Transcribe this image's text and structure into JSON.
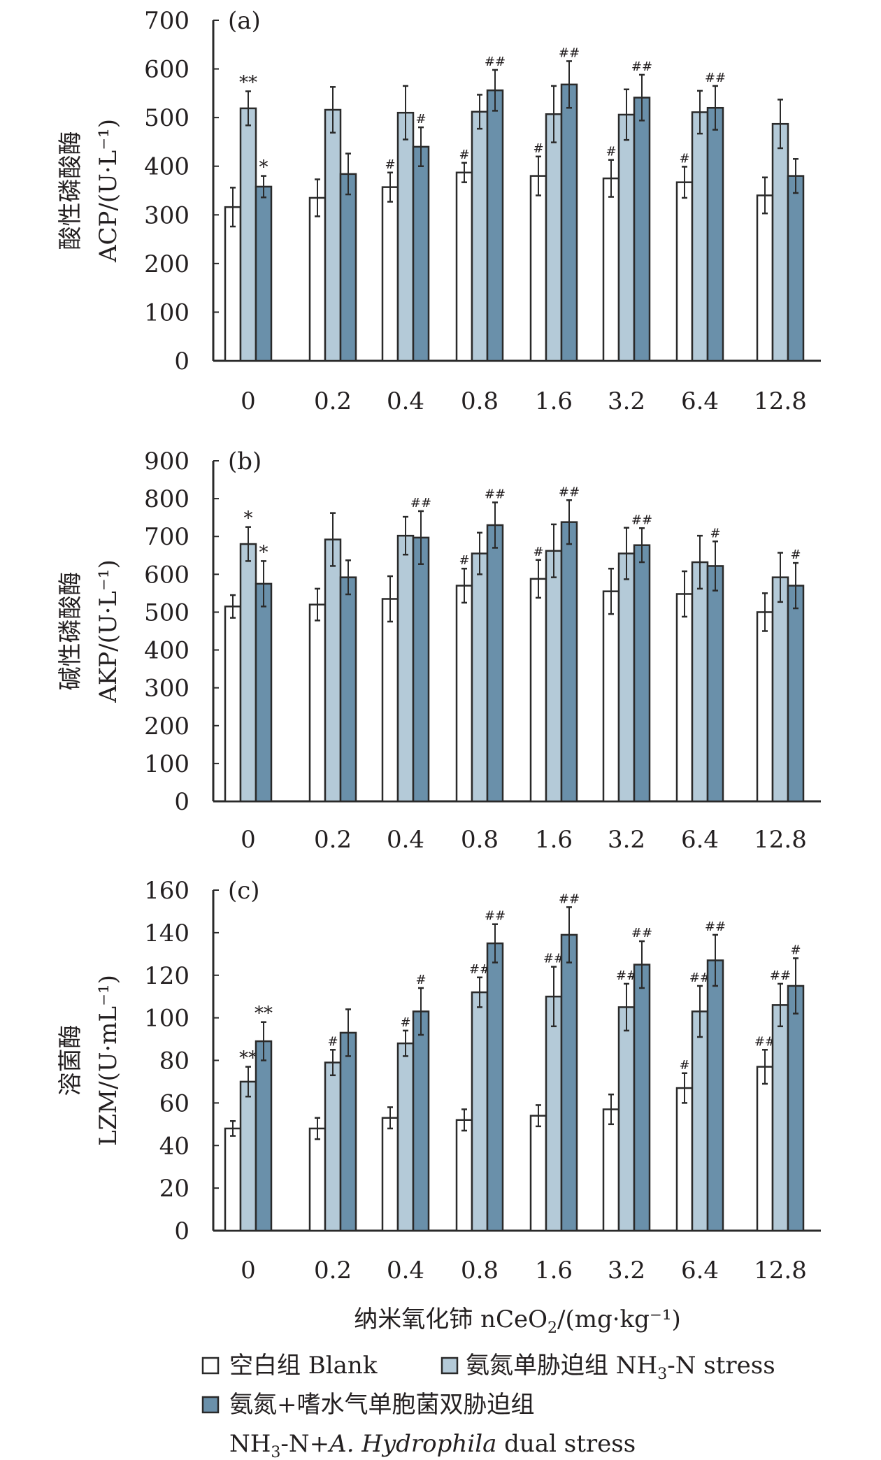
{
  "colors": {
    "blank": "#ffffff",
    "stress": "#b4cad8",
    "dual": "#6a90aa",
    "stroke": "#2a2a2a"
  },
  "chart_data": [
    {
      "type": "bar",
      "panel_label": "(a)",
      "ylabel_cn": "酸性磷酸酶",
      "ylabel_en": "ACP/(U·L⁻¹)",
      "ylim": [
        0,
        700
      ],
      "yticks": [
        "0",
        "100",
        "200",
        "300",
        "400",
        "500",
        "600",
        "700"
      ],
      "categories": [
        "0",
        "0.2",
        "0.4",
        "0.8",
        "1.6",
        "3.2",
        "6.4",
        "12.8"
      ],
      "series": [
        {
          "name": "blank",
          "values": [
            316,
            335,
            357,
            387,
            380,
            375,
            367,
            340
          ],
          "errors": [
            40,
            38,
            30,
            20,
            40,
            38,
            32,
            37
          ],
          "marks": [
            "",
            "",
            "#",
            "#",
            "#",
            "#",
            "#",
            ""
          ]
        },
        {
          "name": "stress",
          "values": [
            519,
            516,
            510,
            512,
            507,
            506,
            511,
            487
          ],
          "errors": [
            35,
            47,
            55,
            35,
            58,
            52,
            44,
            50
          ],
          "marks": [
            "**",
            "",
            "",
            "",
            "",
            "",
            "",
            ""
          ]
        },
        {
          "name": "dual",
          "values": [
            358,
            384,
            440,
            556,
            568,
            541,
            520,
            380
          ],
          "errors": [
            22,
            42,
            40,
            42,
            48,
            47,
            45,
            35
          ],
          "marks": [
            "*",
            "",
            "#",
            "##",
            "##",
            "##",
            "##",
            ""
          ]
        }
      ]
    },
    {
      "type": "bar",
      "panel_label": "(b)",
      "ylabel_cn": "碱性磷酸酶",
      "ylabel_en": "AKP/(U·L⁻¹)",
      "ylim": [
        0,
        900
      ],
      "yticks": [
        "0",
        "100",
        "200",
        "300",
        "400",
        "500",
        "600",
        "700",
        "800",
        "900"
      ],
      "categories": [
        "0",
        "0.2",
        "0.4",
        "0.8",
        "1.6",
        "3.2",
        "6.4",
        "12.8"
      ],
      "series": [
        {
          "name": "blank",
          "values": [
            515,
            520,
            535,
            570,
            588,
            555,
            548,
            500
          ],
          "errors": [
            30,
            42,
            60,
            45,
            50,
            60,
            60,
            50
          ],
          "marks": [
            "",
            "",
            "",
            "#",
            "#",
            "",
            "",
            ""
          ]
        },
        {
          "name": "stress",
          "values": [
            680,
            692,
            702,
            655,
            662,
            655,
            632,
            592
          ],
          "errors": [
            45,
            70,
            50,
            55,
            70,
            68,
            70,
            65
          ],
          "marks": [
            "*",
            "",
            "",
            "",
            "",
            "",
            "",
            ""
          ]
        },
        {
          "name": "dual",
          "values": [
            575,
            592,
            697,
            730,
            738,
            677,
            622,
            570
          ],
          "errors": [
            60,
            45,
            70,
            60,
            58,
            45,
            65,
            60
          ],
          "marks": [
            "*",
            "",
            "##",
            "##",
            "##",
            "##",
            "#",
            "#"
          ]
        }
      ]
    },
    {
      "type": "bar",
      "panel_label": "(c)",
      "ylabel_cn": "溶菌酶",
      "ylabel_en": "LZM/(U·mL⁻¹)",
      "ylim": [
        0,
        160
      ],
      "yticks": [
        "0",
        "20",
        "40",
        "60",
        "80",
        "100",
        "120",
        "140",
        "160"
      ],
      "categories": [
        "0",
        "0.2",
        "0.4",
        "0.8",
        "1.6",
        "3.2",
        "6.4",
        "12.8"
      ],
      "series": [
        {
          "name": "blank",
          "values": [
            48,
            48,
            53,
            52,
            54,
            57,
            67,
            77
          ],
          "errors": [
            3.5,
            5,
            5,
            5,
            5,
            7,
            7,
            8
          ],
          "marks": [
            "",
            "",
            "",
            "",
            "",
            "",
            "#",
            "##"
          ]
        },
        {
          "name": "stress",
          "values": [
            70,
            79,
            88,
            112,
            110,
            105,
            103,
            106
          ],
          "errors": [
            7,
            6,
            6,
            7,
            14,
            11,
            12,
            10
          ],
          "marks": [
            "**",
            "#",
            "#",
            "##",
            "##",
            "##",
            "##",
            "##"
          ]
        },
        {
          "name": "dual",
          "values": [
            89,
            93,
            103,
            135,
            139,
            125,
            127,
            115
          ],
          "errors": [
            9,
            11,
            11,
            9,
            13,
            11,
            12,
            13
          ],
          "marks": [
            "**",
            "",
            "#",
            "##",
            "##",
            "##",
            "##",
            "#"
          ]
        }
      ]
    }
  ],
  "xlabel": {
    "main": "纳米氧化铈 nCeO",
    "sub": "2",
    "unit": "/(mg·kg⁻¹)"
  },
  "legend": [
    {
      "key": "blank",
      "text": "空白组 Blank"
    },
    {
      "key": "stress",
      "text_a": "氨氮单胁迫组 NH",
      "sub": "3",
      "text_b": "-N stress"
    },
    {
      "key": "dual",
      "text": "氨氮+嗜水气单胞菌双胁迫组",
      "line2_a": "NH",
      "line2_sub": "3",
      "line2_b": "-N+",
      "line2_italic": "A. Hydrophila",
      "line2_c": " dual stress"
    }
  ]
}
